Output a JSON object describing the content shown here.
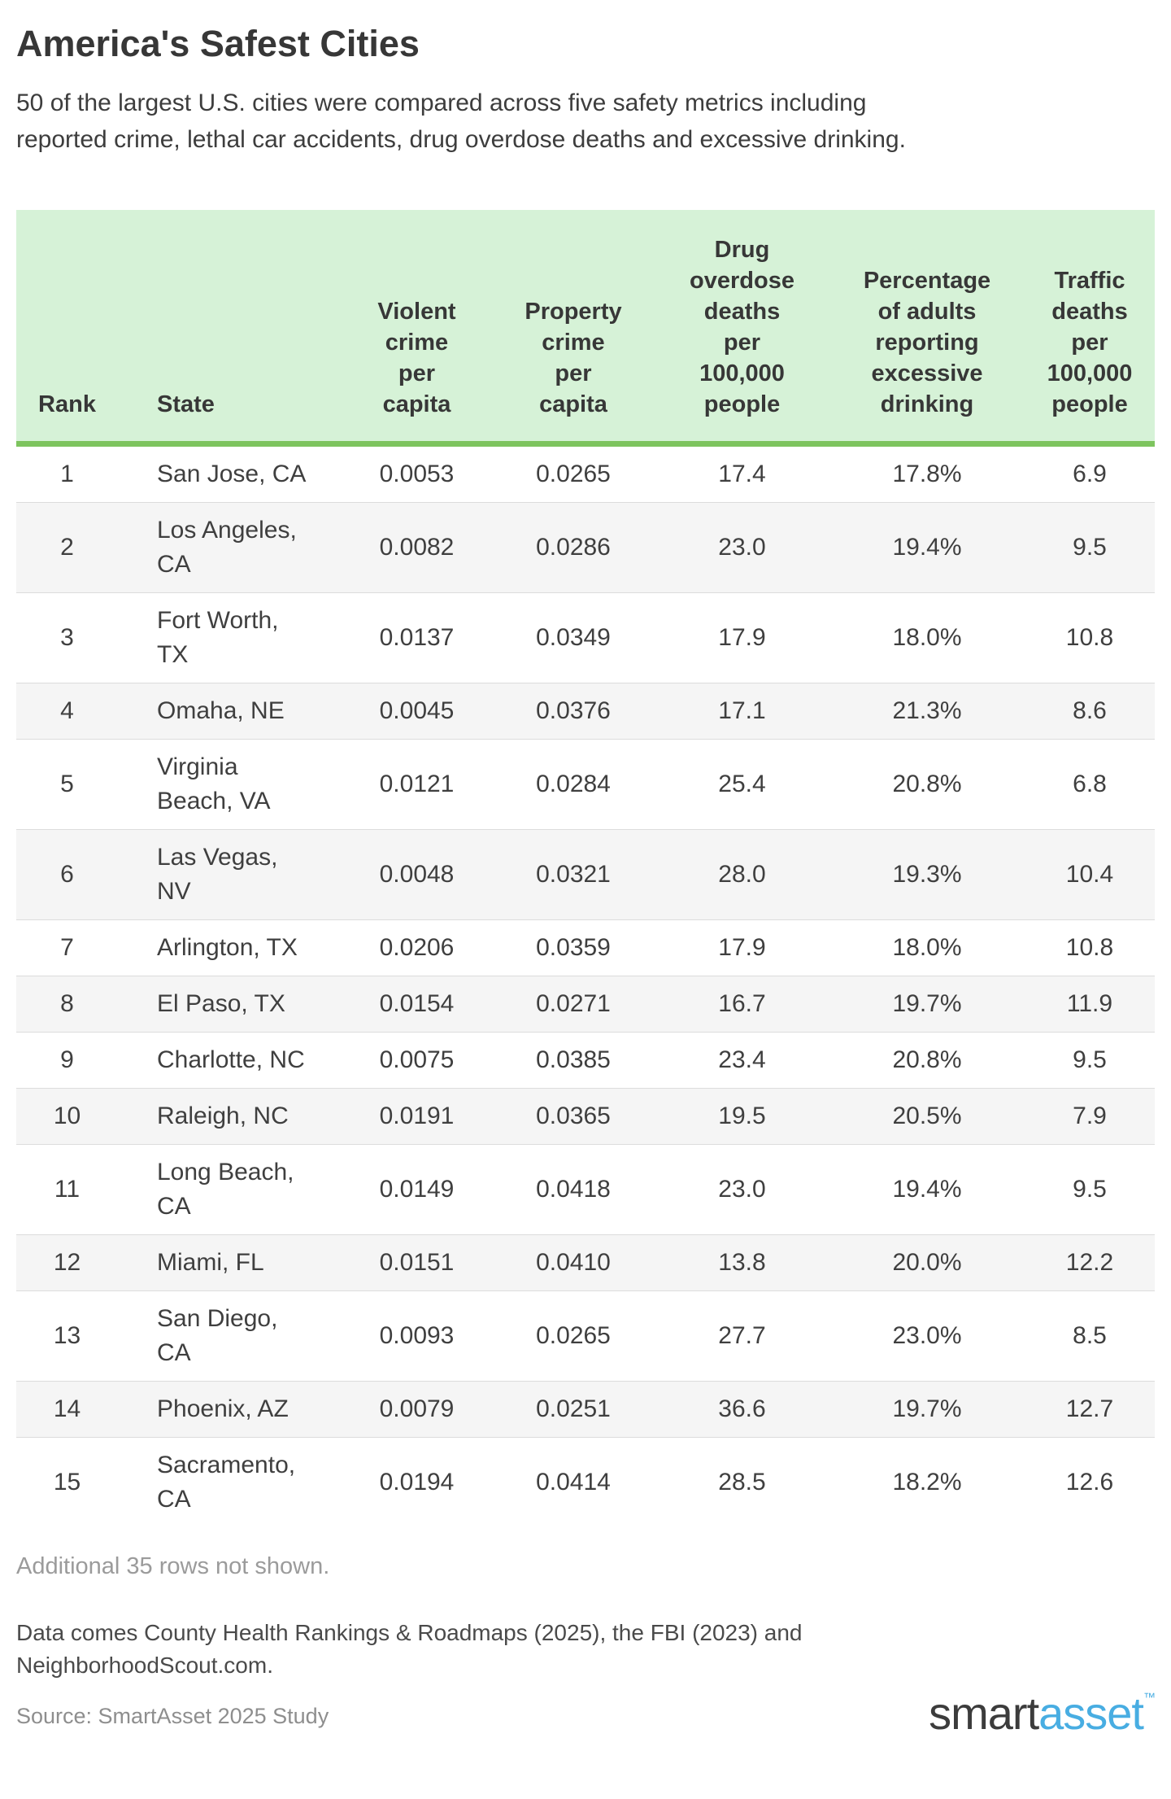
{
  "page": {
    "title": "America's Safest Cities",
    "subtitle": "50 of the largest U.S. cities were compared across five safety metrics including\nreported crime, lethal car accidents, drug overdose deaths and excessive drinking."
  },
  "table": {
    "header_labels": [
      "Rank",
      "State",
      "Violent\ncrime\nper\ncapita",
      "Property\ncrime\nper\ncapita",
      "Drug\noverdose\ndeaths\nper\n100,000\npeople",
      "Percentage\nof adults\nreporting\nexcessive\ndrinking",
      "Traffic\ndeaths\nper\n100,000\npeople"
    ]
  },
  "chart_data": {
    "type": "table",
    "title": "America's Safest Cities",
    "columns": [
      "Rank",
      "State",
      "Violent crime per capita",
      "Property crime per capita",
      "Drug overdose deaths per 100,000 people",
      "Percentage of adults reporting excessive drinking",
      "Traffic deaths per 100,000 people"
    ],
    "rows": [
      [
        "1",
        "San Jose, CA",
        "0.0053",
        "0.0265",
        "17.4",
        "17.8%",
        "6.9"
      ],
      [
        "2",
        "Los Angeles, CA",
        "0.0082",
        "0.0286",
        "23.0",
        "19.4%",
        "9.5"
      ],
      [
        "3",
        "Fort Worth, TX",
        "0.0137",
        "0.0349",
        "17.9",
        "18.0%",
        "10.8"
      ],
      [
        "4",
        "Omaha, NE",
        "0.0045",
        "0.0376",
        "17.1",
        "21.3%",
        "8.6"
      ],
      [
        "5",
        "Virginia Beach, VA",
        "0.0121",
        "0.0284",
        "25.4",
        "20.8%",
        "6.8"
      ],
      [
        "6",
        "Las Vegas, NV",
        "0.0048",
        "0.0321",
        "28.0",
        "19.3%",
        "10.4"
      ],
      [
        "7",
        "Arlington, TX",
        "0.0206",
        "0.0359",
        "17.9",
        "18.0%",
        "10.8"
      ],
      [
        "8",
        "El Paso, TX",
        "0.0154",
        "0.0271",
        "16.7",
        "19.7%",
        "11.9"
      ],
      [
        "9",
        "Charlotte, NC",
        "0.0075",
        "0.0385",
        "23.4",
        "20.8%",
        "9.5"
      ],
      [
        "10",
        "Raleigh, NC",
        "0.0191",
        "0.0365",
        "19.5",
        "20.5%",
        "7.9"
      ],
      [
        "11",
        "Long Beach, CA",
        "0.0149",
        "0.0418",
        "23.0",
        "19.4%",
        "9.5"
      ],
      [
        "12",
        "Miami, FL",
        "0.0151",
        "0.0410",
        "13.8",
        "20.0%",
        "12.2"
      ],
      [
        "13",
        "San Diego, CA",
        "0.0093",
        "0.0265",
        "27.7",
        "23.0%",
        "8.5"
      ],
      [
        "14",
        "Phoenix, AZ",
        "0.0079",
        "0.0251",
        "36.6",
        "19.7%",
        "12.7"
      ],
      [
        "15",
        "Sacramento, CA",
        "0.0194",
        "0.0414",
        "28.5",
        "18.2%",
        "12.6"
      ]
    ]
  },
  "notes": {
    "additional_rows": "Additional 35 rows not shown.",
    "data_note": "Data comes County Health Rankings & Roadmaps (2025), the FBI (2023) and\nNeighborhoodScout.com.",
    "source": "Source: SmartAsset 2025 Study"
  },
  "logo": {
    "part1": "smart",
    "part2": "asset",
    "trademark": "™"
  },
  "colors": {
    "header_bg": "#d6f2d7",
    "header_border": "#7dc45e",
    "row_alt_bg": "#f5f5f5",
    "divider": "#dcdcdc",
    "logo_blue": "#48ade2",
    "text_dark": "#3f3f3f",
    "note_gray": "#9b9b9b"
  }
}
